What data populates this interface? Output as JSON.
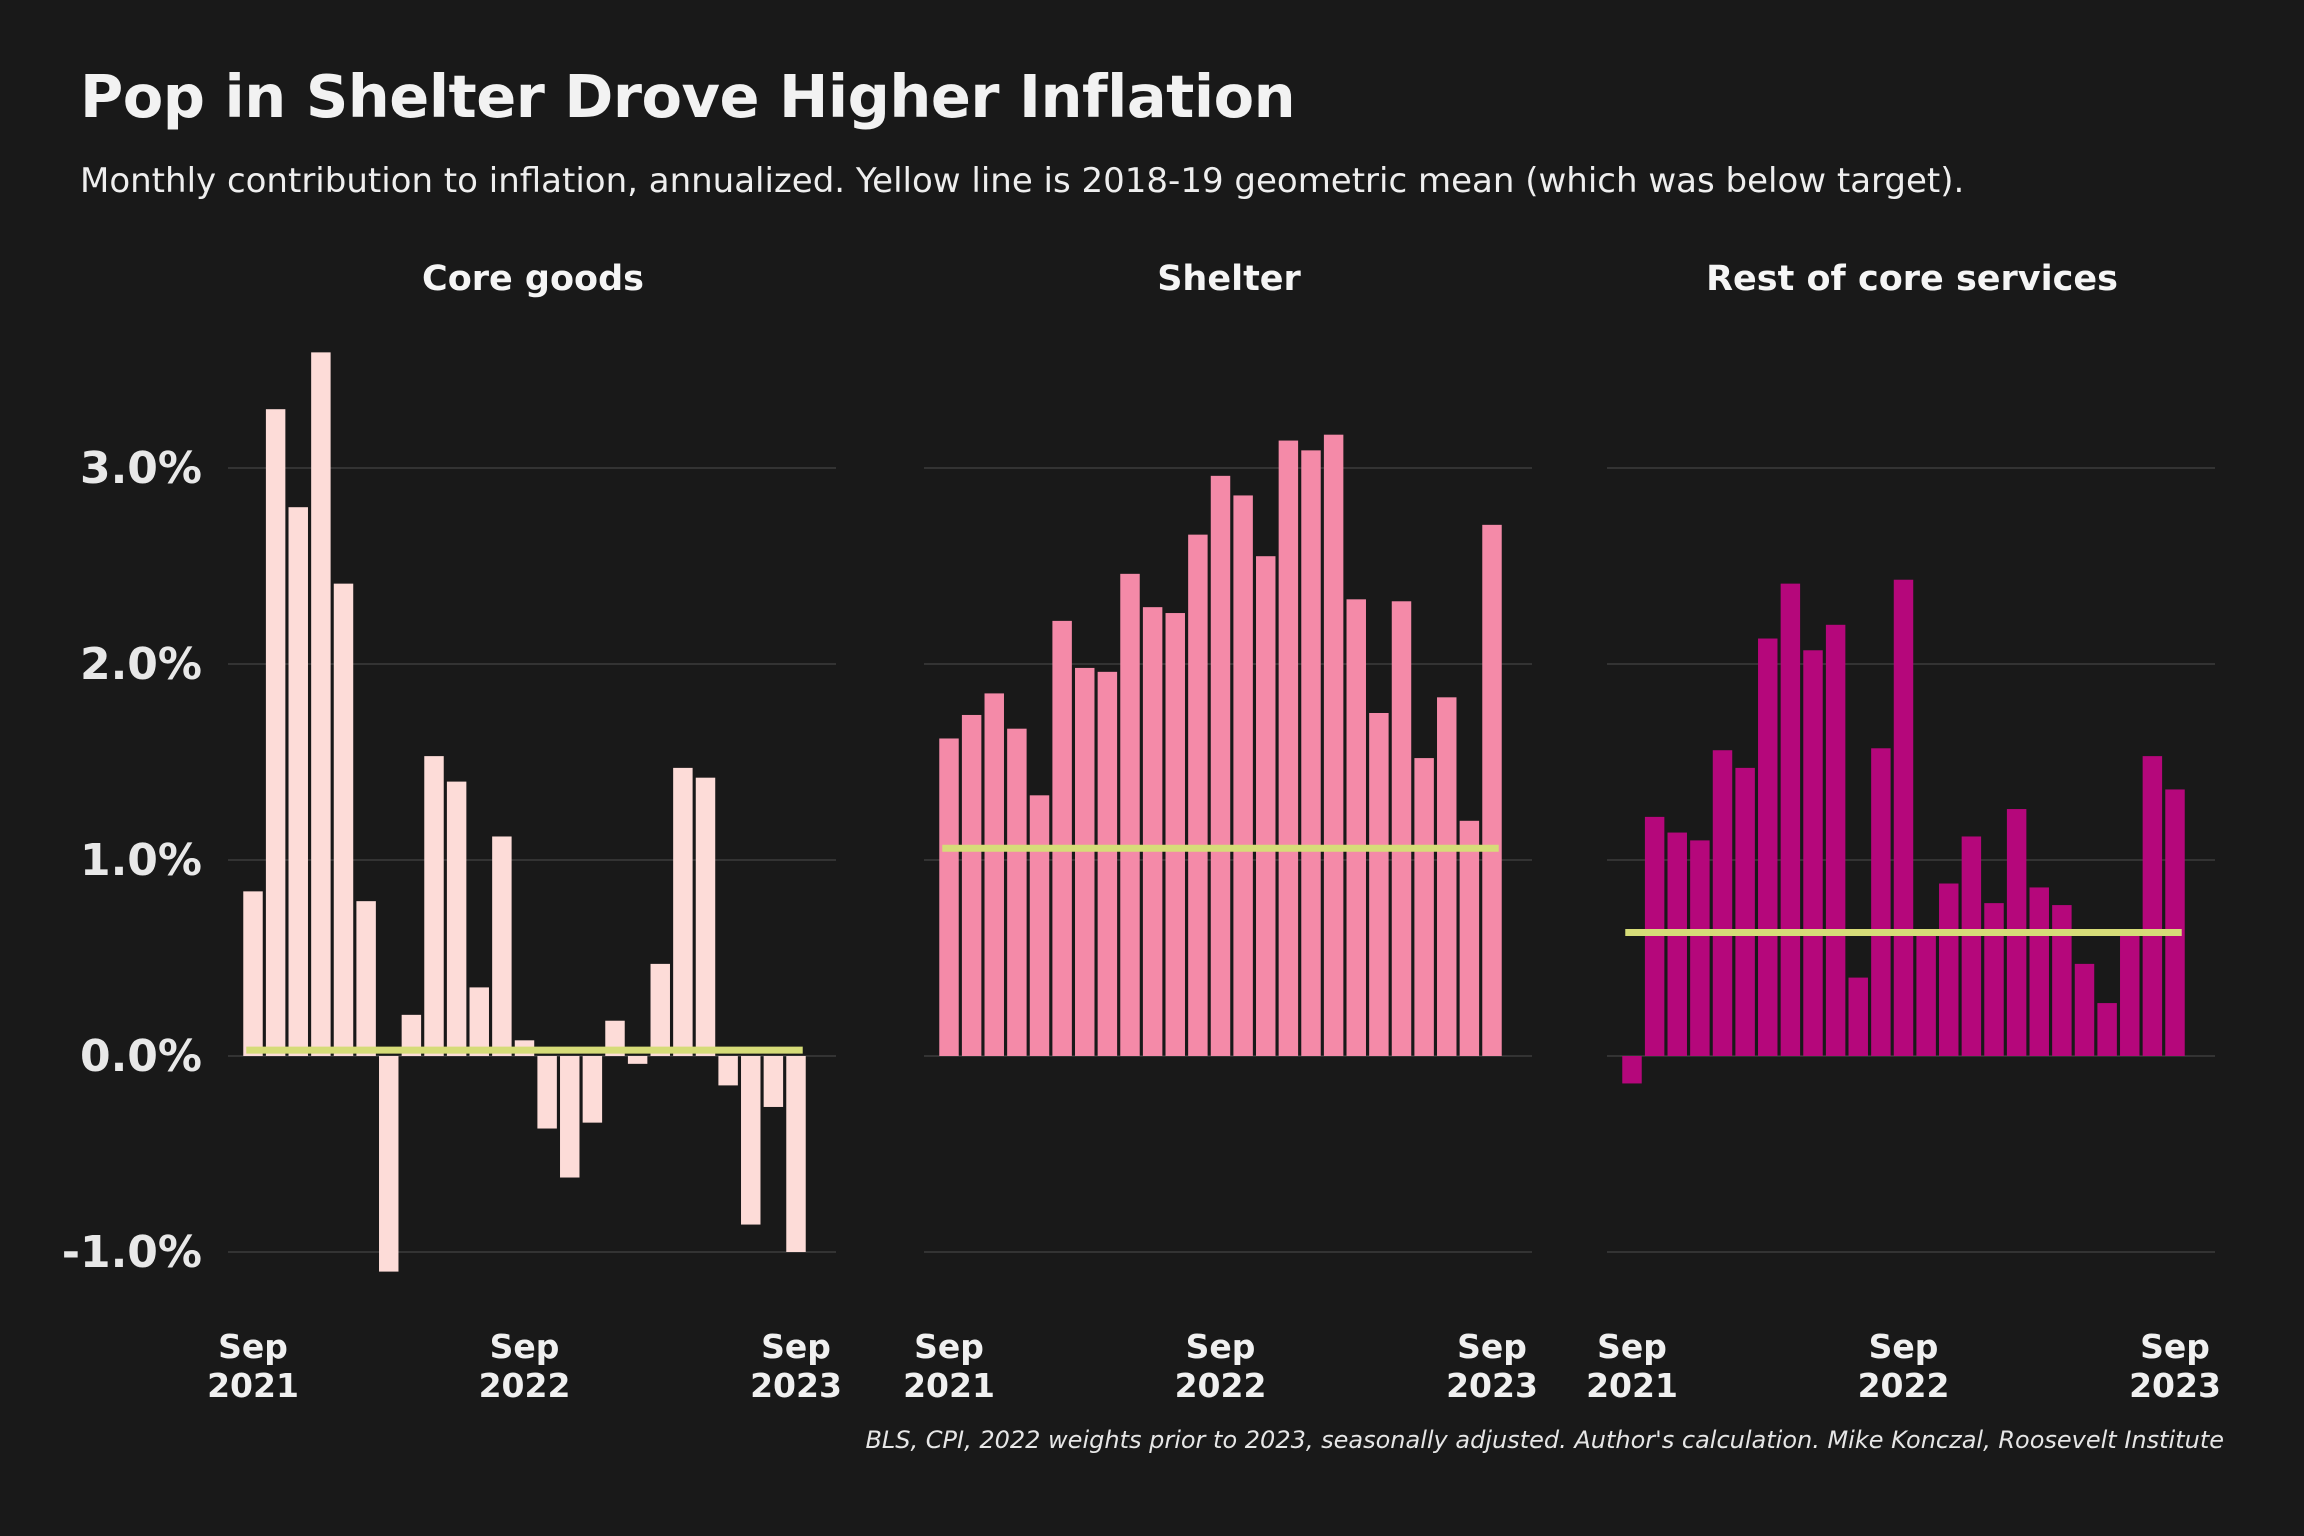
{
  "title": "Pop in Shelter Drove Higher Inflation",
  "subtitle": "Monthly contribution to inflation, annualized. Yellow line is 2018-19 geometric mean (which was below target).",
  "caption": "BLS, CPI, 2022 weights prior to 2023, seasonally adjusted. Author's calculation. Mike Konczal, Roosevelt Institute",
  "colors": {
    "background": "#191919",
    "grid": "#333333",
    "benchmark_line": "#d6dc78",
    "core_goods": "#fddcd8",
    "shelter": "#f48aa8",
    "rest_of_core_services": "#b5077b"
  },
  "chart_data": {
    "type": "bar",
    "layout": "small-multiples",
    "months": [
      "Sep 2021",
      "Oct 2021",
      "Nov 2021",
      "Dec 2021",
      "Jan 2022",
      "Feb 2022",
      "Mar 2022",
      "Apr 2022",
      "May 2022",
      "Jun 2022",
      "Jul 2022",
      "Aug 2022",
      "Sep 2022",
      "Oct 2022",
      "Nov 2022",
      "Dec 2022",
      "Jan 2023",
      "Feb 2023",
      "Mar 2023",
      "Apr 2023",
      "May 2023",
      "Jun 2023",
      "Jul 2023",
      "Aug 2023",
      "Sep 2023"
    ],
    "x_ticks": [
      {
        "month": "Sep 2021",
        "line1": "Sep",
        "line2": "2021"
      },
      {
        "month": "Sep 2022",
        "line1": "Sep",
        "line2": "2022"
      },
      {
        "month": "Sep 2023",
        "line1": "Sep",
        "line2": "2023"
      }
    ],
    "y_ticks": [
      {
        "value": 3.0,
        "label": "3.0%"
      },
      {
        "value": 2.0,
        "label": "2.0%"
      },
      {
        "value": 1.0,
        "label": "1.0%"
      },
      {
        "value": 0.0,
        "label": "0.0%"
      },
      {
        "value": -1.0,
        "label": "-1.0%"
      }
    ],
    "ylim": [
      -1.3,
      3.6
    ],
    "grid": true,
    "series": [
      {
        "name": "Core goods",
        "color": "#fddcd8",
        "benchmark": 0.03,
        "values": [
          0.84,
          3.3,
          2.8,
          3.59,
          2.41,
          0.79,
          -1.1,
          0.21,
          1.53,
          1.4,
          0.35,
          1.12,
          0.08,
          -0.37,
          -0.62,
          -0.34,
          0.18,
          -0.04,
          0.47,
          1.47,
          1.42,
          -0.15,
          -0.86,
          -0.26,
          -1.0
        ]
      },
      {
        "name": "Shelter",
        "color": "#f48aa8",
        "benchmark": 1.06,
        "values": [
          1.62,
          1.74,
          1.85,
          1.67,
          1.33,
          2.22,
          1.98,
          1.96,
          2.46,
          2.29,
          2.26,
          2.66,
          2.96,
          2.86,
          2.55,
          3.14,
          3.09,
          3.17,
          2.33,
          1.75,
          2.32,
          1.52,
          1.83,
          1.2,
          2.71
        ]
      },
      {
        "name": "Rest of core services",
        "color": "#b5077b",
        "benchmark": 0.63,
        "values": [
          -0.14,
          1.22,
          1.14,
          1.1,
          1.56,
          1.47,
          2.13,
          2.41,
          2.07,
          2.2,
          0.4,
          1.57,
          2.43,
          0.64,
          0.88,
          1.12,
          0.78,
          1.26,
          0.86,
          0.77,
          0.47,
          0.27,
          0.64,
          1.53,
          1.36
        ]
      }
    ]
  }
}
